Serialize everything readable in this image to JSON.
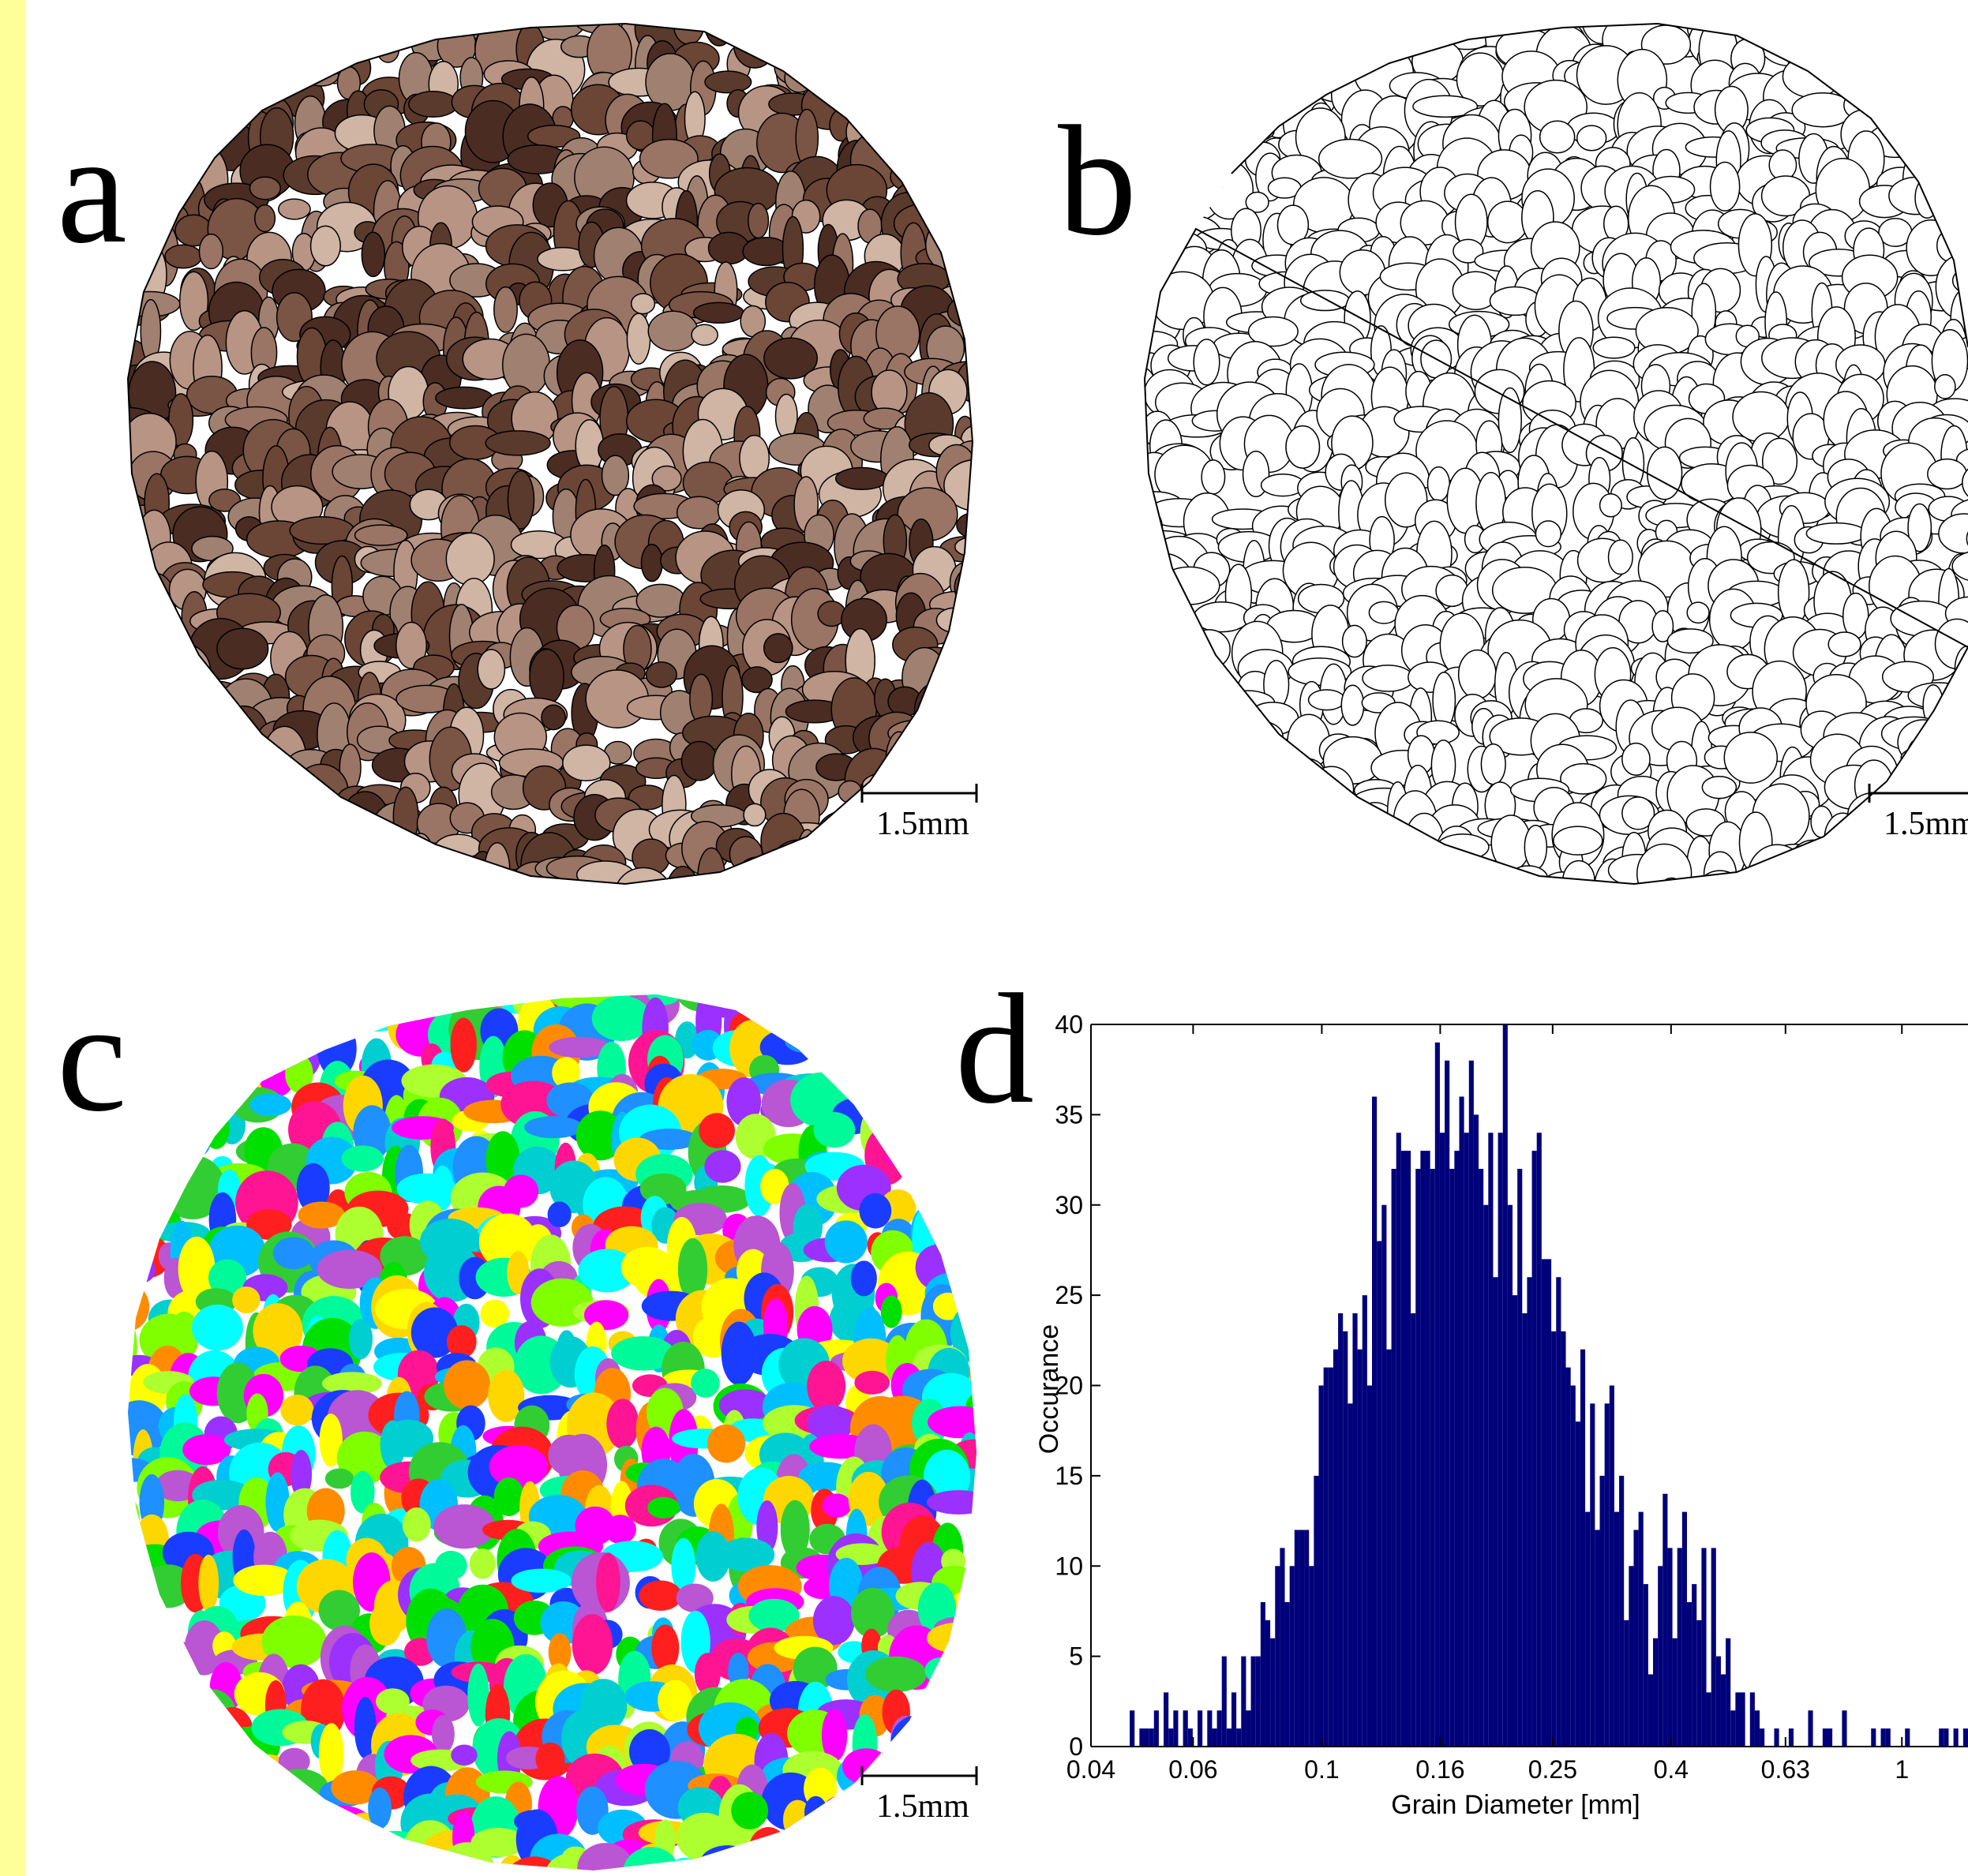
{
  "figure": {
    "colors": {
      "background": "#ffffff",
      "left_strip": "#ffff99",
      "micrograph_base": "#8a6a58",
      "grain_boundary": "#000000",
      "histogram_bar": "#00007a"
    },
    "panels": [
      {
        "letter": "a",
        "content": "micrograph with grain boundaries",
        "scale_bar": "1.5mm"
      },
      {
        "letter": "b",
        "content": "grain boundary map",
        "scale_bar": "1.5mm"
      },
      {
        "letter": "c",
        "content": "color-coded grain map",
        "scale_bar": "1.5mm"
      },
      {
        "letter": "d",
        "content": "grain size histogram"
      }
    ],
    "grain_palette": [
      "#ff1f1f",
      "#00e000",
      "#1a3cff",
      "#ff00ff",
      "#00ffff",
      "#ffff00",
      "#9b30ff",
      "#7fff00",
      "#00bfff",
      "#ff8c00",
      "#ff1493",
      "#32cd32",
      "#1e90ff",
      "#ffd700",
      "#00fa9a",
      "#ba55d3",
      "#adff2f",
      "#00ced1"
    ]
  },
  "chart_data": {
    "type": "bar",
    "xlabel": "Grain Diameter [mm]",
    "ylabel": "Occurance",
    "x_scale": "log",
    "xlim": [
      0.04,
      1.3
    ],
    "ylim": [
      0,
      40
    ],
    "x_ticks": [
      {
        "value": 0.04,
        "label": "0.04"
      },
      {
        "value": 0.06,
        "label": "0.06"
      },
      {
        "value": 0.1,
        "label": "0.1"
      },
      {
        "value": 0.16,
        "label": "0.16"
      },
      {
        "value": 0.25,
        "label": "0.25"
      },
      {
        "value": 0.4,
        "label": "0.4"
      },
      {
        "value": 0.63,
        "label": "0.63"
      },
      {
        "value": 1,
        "label": "1"
      }
    ],
    "y_ticks": [
      0,
      5,
      10,
      15,
      20,
      25,
      30,
      35,
      40
    ],
    "bin_x_start": 0.04,
    "bin_x_end": 1.3,
    "counts": [
      0,
      0,
      0,
      0,
      0,
      0,
      0,
      0,
      2,
      0,
      1,
      1,
      1,
      2,
      0,
      3,
      1,
      2,
      0,
      2,
      1,
      0,
      2,
      0,
      2,
      1,
      2,
      5,
      1,
      3,
      1,
      5,
      2,
      5,
      5,
      8,
      7,
      6,
      10,
      11,
      8,
      10,
      12,
      12,
      12,
      10,
      15,
      20,
      21,
      21,
      22,
      24,
      23,
      19,
      24,
      22,
      25,
      20,
      36,
      28,
      30,
      22,
      32,
      34,
      33,
      33,
      24,
      32,
      33,
      33,
      32,
      39,
      34,
      38,
      32,
      33,
      36,
      34,
      38,
      35,
      32,
      30,
      34,
      26,
      34,
      40,
      30,
      25,
      32,
      24,
      26,
      33,
      34,
      27,
      27,
      23,
      26,
      23,
      21,
      20,
      18,
      22,
      13,
      19,
      12,
      15,
      19,
      20,
      13,
      15,
      7,
      10,
      12,
      13,
      9,
      4,
      6,
      10,
      14,
      11,
      6,
      11,
      13,
      8,
      9,
      7,
      11,
      3,
      11,
      5,
      4,
      6,
      2,
      3,
      3,
      0,
      3,
      2,
      1,
      0,
      0,
      1,
      0,
      0,
      1,
      0,
      0,
      0,
      2,
      0,
      0,
      1,
      1,
      0,
      0,
      2,
      0,
      0,
      0,
      0,
      0,
      1,
      0,
      1,
      1,
      0,
      0,
      0,
      1,
      0,
      0,
      0,
      0,
      0,
      0,
      1,
      1,
      0,
      1,
      0,
      1
    ]
  }
}
